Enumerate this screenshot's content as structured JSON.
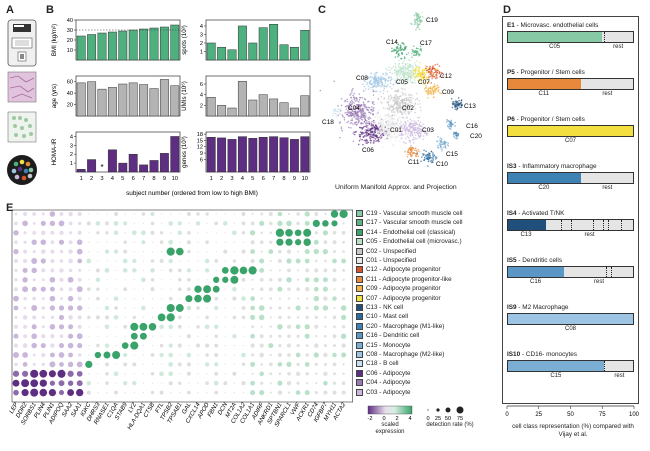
{
  "panels": {
    "a": "A",
    "b": "B",
    "c": "C",
    "d": "D",
    "e": "E"
  },
  "colors": {
    "green": "#4fb07f",
    "gray": "#b4b4b4",
    "purple": "#5e2e82",
    "blue": "#6aa3cb"
  },
  "panel_b": {
    "xlabel": "subject number (ordered from low to high BMI)",
    "subjects": [
      "1",
      "2",
      "3",
      "4",
      "5",
      "6",
      "7",
      "8",
      "9",
      "10"
    ],
    "star": "*",
    "left": [
      {
        "ylabel": "BMI (kg/m²)",
        "ticks": [
          "40",
          "30",
          "20",
          "10"
        ],
        "color": "#4fb07f",
        "values": [
          24,
          25.5,
          27,
          28,
          29,
          30,
          31,
          32,
          33,
          35
        ],
        "ymax": 40,
        "ref": 30
      },
      {
        "ylabel": "age (yrs)",
        "ticks": [
          "60",
          "40",
          "20"
        ],
        "color": "#b4b4b4",
        "values": [
          58,
          60,
          47,
          50,
          56,
          58,
          55,
          48,
          64,
          53
        ],
        "ymax": 70
      },
      {
        "ylabel": "HOMA-IR",
        "ticks": [
          "4",
          "3",
          "2",
          "1"
        ],
        "color": "#5e2e82",
        "values": [
          0.3,
          1.4,
          0,
          2.5,
          1.0,
          2.0,
          0.8,
          1.3,
          2.1,
          4.0
        ],
        "ymax": 4.5
      }
    ],
    "right": [
      {
        "ylabel": "spots (10³)",
        "ticks": [
          "4",
          "3",
          "2",
          "1"
        ],
        "color": "#4fb07f",
        "values": [
          2.0,
          1.5,
          1.2,
          4.0,
          2.0,
          3.8,
          4.2,
          1.8,
          1.5,
          3.5
        ],
        "ymax": 4.7
      },
      {
        "ylabel": "UMIs (10⁶)",
        "ticks": [
          "6",
          "4",
          "2"
        ],
        "color": "#b4b4b4",
        "values": [
          3.5,
          2.0,
          1.5,
          6.5,
          3.0,
          4.0,
          3.2,
          2.5,
          1.5,
          3.8
        ],
        "ymax": 7.5
      },
      {
        "ylabel": "genes (10³)",
        "ticks": [
          "18",
          "15",
          "12",
          "9",
          "6"
        ],
        "color": "#5e2e82",
        "values": [
          16.5,
          16.2,
          15.5,
          16.8,
          16.0,
          16.5,
          16.8,
          16.3,
          15.5,
          16.8
        ],
        "ymax": 19
      }
    ]
  },
  "panel_c": {
    "title": "Uniform Manifold Approx. and Projection",
    "clusters": [
      "C19",
      "C14",
      "C17",
      "C08",
      "C05",
      "C07",
      "C12",
      "C09",
      "C04",
      "C02",
      "C13",
      "C18",
      "C01",
      "C03",
      "C16",
      "C20",
      "C06",
      "C15",
      "C11",
      "C10"
    ]
  },
  "panel_e": {
    "genes": [
      "LEP",
      "DDR2",
      "SORBS1",
      "PLIN4",
      "PLIN1",
      "ADIPOQ",
      "SAA2",
      "SAA1",
      "IGKC",
      "DHRS3",
      "RNASE1",
      "C1QA",
      "STAB9",
      "LYZ",
      "HLA-DQA1",
      "CTSB",
      "FTL",
      "TPSB2",
      "TPSAB1",
      "GAL",
      "CXCL14",
      "APOD",
      "FBN1",
      "DCN",
      "MT2A",
      "COL1A2",
      "COL1A1",
      "ADIRF",
      "ANKRD1",
      "SPTBN1",
      "SPARCL1",
      "VWF",
      "ACKR1",
      "CD74",
      "IGFBP7",
      "MYH11",
      "ACTA2"
    ],
    "clusters": [
      {
        "name": "C19 - Vascular smooth muscle cell",
        "color": "#86c9a4"
      },
      {
        "name": "C17 - Vascular smooth muscle cell",
        "color": "#59b482"
      },
      {
        "name": "C14 - Endothelial cell (classical)",
        "color": "#3aa36a"
      },
      {
        "name": "C05 - Endothelial cell (microvasc.)",
        "color": "#b8e0c8"
      },
      {
        "name": "C02 - Unspecified",
        "color": "#c8c8c8"
      },
      {
        "name": "C01 - Unspecified",
        "color": "#e8e8e8"
      },
      {
        "name": "C12 - Adipocyte progenitor",
        "color": "#d9532a"
      },
      {
        "name": "C11 - Adipocyte progenitor-like",
        "color": "#e7883a"
      },
      {
        "name": "C09 - Adipocyte progenitor",
        "color": "#f1b44a"
      },
      {
        "name": "C07 - Adipocyte progenitor",
        "color": "#f3df3f"
      },
      {
        "name": "C13 - NK cell",
        "color": "#1f4f7a"
      },
      {
        "name": "C10 - Mast cell",
        "color": "#2a6a9c"
      },
      {
        "name": "C20 - Macrophage (M1-like)",
        "color": "#3e82b4"
      },
      {
        "name": "C16 - Dendritic cell",
        "color": "#5a97c4"
      },
      {
        "name": "C15 - Monocyte",
        "color": "#7aaed3"
      },
      {
        "name": "C08 - Macrophage (M2-like)",
        "color": "#9dc4e2"
      },
      {
        "name": "C18 - B cell",
        "color": "#c7dff0"
      },
      {
        "name": "C06 - Adipocyte",
        "color": "#5e2e82"
      },
      {
        "name": "C04 - Adipocyte",
        "color": "#9a7ab5"
      },
      {
        "name": "C03 - Adipocyte",
        "color": "#cbb7dd"
      }
    ],
    "scale_title": "scaled expression",
    "scale_ticks": [
      "-2",
      "0",
      "2",
      "4"
    ],
    "size_title": "detection rate (%)",
    "size_ticks": [
      "0",
      "25",
      "50",
      "75"
    ]
  },
  "panel_d": {
    "xlabel": "cell class representation (%) compared with Vijay et al.",
    "ticks": [
      "0",
      "25",
      "50",
      "75",
      "100"
    ],
    "rows": [
      {
        "title": "E1 - Microvasc. endothelial cells",
        "bold": "E1",
        "color": "#86c9a4",
        "fill": 75,
        "label": "C05",
        "rest": "rest",
        "dashes": [
          77
        ]
      },
      {
        "title": "P5 - Progenitor / Stem cells",
        "bold": "P5",
        "color": "#e7883a",
        "fill": 58,
        "label": "C11",
        "rest": "rest",
        "dashes": []
      },
      {
        "title": "P6 - Progenitor / Stem cells",
        "bold": "P6",
        "color": "#f3df3f",
        "fill": 100,
        "label": "C07",
        "rest": "",
        "dashes": []
      },
      {
        "title": "IS3 - Inflammatory macrophage",
        "bold": "IS3",
        "color": "#3e82b4",
        "fill": 58,
        "label": "C20",
        "rest": "rest",
        "dashes": []
      },
      {
        "title": "IS4 - Activated T/NK",
        "bold": "IS4",
        "color": "#1f4f7a",
        "fill": 30,
        "label": "C13",
        "rest": "rest",
        "dashes": [
          42,
          50,
          68,
          76,
          80,
          90
        ]
      },
      {
        "title": "IS5 - Dendritic cells",
        "bold": "IS5",
        "color": "#5a97c4",
        "fill": 45,
        "label": "C16",
        "rest": "rest",
        "dashes": [
          78,
          82
        ]
      },
      {
        "title": "IS9 - M2 Macrophage",
        "bold": "IS9",
        "color": "#9dc4e2",
        "fill": 100,
        "label": "C08",
        "rest": "",
        "dashes": []
      },
      {
        "title": "IS10 - CD16- monocytes",
        "bold": "IS10",
        "color": "#7aaed3",
        "fill": 77,
        "label": "C15",
        "rest": "rest",
        "dashes": [
          77
        ]
      }
    ]
  }
}
